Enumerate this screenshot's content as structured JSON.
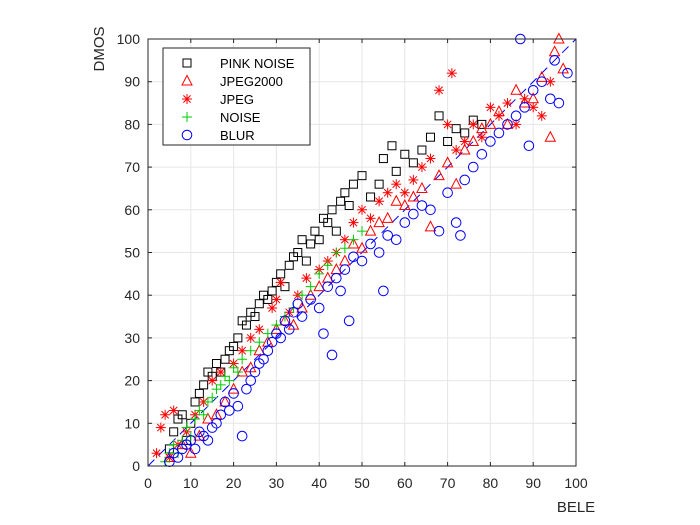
{
  "chart_data": {
    "type": "scatter",
    "xlabel": "BELE",
    "ylabel": "DMOS",
    "xlim": [
      0,
      100
    ],
    "ylim": [
      0,
      100
    ],
    "x_ticks": [
      0,
      10,
      20,
      30,
      40,
      50,
      60,
      70,
      80,
      90,
      100
    ],
    "y_ticks": [
      0,
      10,
      20,
      30,
      40,
      50,
      60,
      70,
      80,
      90,
      100
    ],
    "x_tick_labels": [
      "0",
      "10",
      "20",
      "30",
      "40",
      "50",
      "60",
      "70",
      "80",
      "90",
      "100"
    ],
    "y_tick_labels": [
      "0",
      "10",
      "20",
      "30",
      "40",
      "50",
      "60",
      "70",
      "80",
      "90",
      "100"
    ],
    "grid": true,
    "legend_position": "top-left",
    "reference_line": {
      "style": "dashed",
      "color": "#0000ff",
      "points": [
        [
          0,
          0
        ],
        [
          100,
          100
        ]
      ]
    },
    "series": [
      {
        "name": "PINK NOISE",
        "marker": "square",
        "color": "#000000",
        "points": [
          [
            5,
            4
          ],
          [
            6,
            8
          ],
          [
            7,
            11
          ],
          [
            8,
            12
          ],
          [
            9,
            6
          ],
          [
            10,
            10
          ],
          [
            11,
            15
          ],
          [
            12,
            17
          ],
          [
            13,
            19
          ],
          [
            14,
            22
          ],
          [
            15,
            21
          ],
          [
            16,
            24
          ],
          [
            17,
            22
          ],
          [
            18,
            25
          ],
          [
            19,
            27
          ],
          [
            20,
            28
          ],
          [
            21,
            30
          ],
          [
            22,
            34
          ],
          [
            23,
            33
          ],
          [
            24,
            36
          ],
          [
            25,
            35
          ],
          [
            26,
            38
          ],
          [
            27,
            40
          ],
          [
            28,
            39
          ],
          [
            29,
            41
          ],
          [
            30,
            43
          ],
          [
            31,
            45
          ],
          [
            32,
            42
          ],
          [
            33,
            47
          ],
          [
            34,
            49
          ],
          [
            35,
            50
          ],
          [
            36,
            53
          ],
          [
            37,
            48
          ],
          [
            38,
            52
          ],
          [
            39,
            55
          ],
          [
            40,
            53
          ],
          [
            41,
            58
          ],
          [
            42,
            57
          ],
          [
            43,
            60
          ],
          [
            44,
            55
          ],
          [
            45,
            62
          ],
          [
            46,
            64
          ],
          [
            47,
            61
          ],
          [
            48,
            66
          ],
          [
            50,
            68
          ],
          [
            52,
            63
          ],
          [
            54,
            66
          ],
          [
            55,
            72
          ],
          [
            57,
            75
          ],
          [
            58,
            69
          ],
          [
            60,
            73
          ],
          [
            62,
            71
          ],
          [
            64,
            74
          ],
          [
            66,
            77
          ],
          [
            68,
            82
          ],
          [
            70,
            76
          ],
          [
            72,
            79
          ],
          [
            74,
            78
          ],
          [
            76,
            81
          ],
          [
            78,
            80
          ]
        ]
      },
      {
        "name": "JPEG2000",
        "marker": "triangle",
        "color": "#ff0000",
        "points": [
          [
            5,
            2
          ],
          [
            8,
            5
          ],
          [
            10,
            3
          ],
          [
            12,
            7
          ],
          [
            14,
            11
          ],
          [
            16,
            12
          ],
          [
            18,
            15
          ],
          [
            20,
            18
          ],
          [
            22,
            22
          ],
          [
            24,
            23
          ],
          [
            26,
            27
          ],
          [
            28,
            29
          ],
          [
            30,
            32
          ],
          [
            32,
            34
          ],
          [
            34,
            33
          ],
          [
            36,
            37
          ],
          [
            38,
            40
          ],
          [
            40,
            42
          ],
          [
            42,
            44
          ],
          [
            44,
            46
          ],
          [
            46,
            48
          ],
          [
            48,
            52
          ],
          [
            50,
            51
          ],
          [
            52,
            55
          ],
          [
            54,
            57
          ],
          [
            56,
            58
          ],
          [
            58,
            62
          ],
          [
            60,
            61
          ],
          [
            62,
            63
          ],
          [
            64,
            65
          ],
          [
            66,
            56
          ],
          [
            68,
            68
          ],
          [
            70,
            71
          ],
          [
            72,
            66
          ],
          [
            74,
            74
          ],
          [
            76,
            76
          ],
          [
            78,
            79
          ],
          [
            80,
            80
          ],
          [
            82,
            83
          ],
          [
            84,
            80
          ],
          [
            86,
            88
          ],
          [
            88,
            85
          ],
          [
            90,
            86
          ],
          [
            92,
            91
          ],
          [
            94,
            77
          ],
          [
            95,
            97
          ],
          [
            96,
            100
          ],
          [
            97,
            93
          ]
        ]
      },
      {
        "name": "JPEG",
        "marker": "asterisk",
        "color": "#ff0000",
        "points": [
          [
            2,
            3
          ],
          [
            3,
            9
          ],
          [
            4,
            12
          ],
          [
            5,
            2
          ],
          [
            6,
            13
          ],
          [
            7,
            5
          ],
          [
            9,
            8
          ],
          [
            11,
            12
          ],
          [
            13,
            15
          ],
          [
            15,
            20
          ],
          [
            17,
            22
          ],
          [
            20,
            24
          ],
          [
            22,
            27
          ],
          [
            24,
            30
          ],
          [
            26,
            32
          ],
          [
            29,
            37
          ],
          [
            30,
            39
          ],
          [
            31,
            43
          ],
          [
            33,
            36
          ],
          [
            35,
            40
          ],
          [
            37,
            44
          ],
          [
            40,
            46
          ],
          [
            42,
            48
          ],
          [
            44,
            50
          ],
          [
            46,
            53
          ],
          [
            48,
            57
          ],
          [
            50,
            60
          ],
          [
            52,
            58
          ],
          [
            54,
            62
          ],
          [
            56,
            64
          ],
          [
            58,
            66
          ],
          [
            60,
            64
          ],
          [
            62,
            67
          ],
          [
            64,
            70
          ],
          [
            66,
            72
          ],
          [
            68,
            88
          ],
          [
            70,
            80
          ],
          [
            71,
            92
          ],
          [
            72,
            74
          ],
          [
            74,
            76
          ],
          [
            76,
            80
          ],
          [
            78,
            77
          ],
          [
            80,
            84
          ],
          [
            82,
            82
          ],
          [
            84,
            85
          ],
          [
            86,
            80
          ],
          [
            88,
            86
          ],
          [
            90,
            84
          ],
          [
            92,
            82
          ],
          [
            94,
            90
          ]
        ]
      },
      {
        "name": "NOISE",
        "marker": "plus",
        "color": "#00cc00",
        "points": [
          [
            4,
            1
          ],
          [
            5,
            3
          ],
          [
            6,
            5
          ],
          [
            7,
            3
          ],
          [
            8,
            6
          ],
          [
            9,
            9
          ],
          [
            10,
            7
          ],
          [
            11,
            11
          ],
          [
            12,
            13
          ],
          [
            13,
            12
          ],
          [
            14,
            15
          ],
          [
            15,
            16
          ],
          [
            16,
            18
          ],
          [
            17,
            19
          ],
          [
            18,
            21
          ],
          [
            19,
            20
          ],
          [
            20,
            23
          ],
          [
            21,
            22
          ],
          [
            22,
            25
          ],
          [
            24,
            27
          ],
          [
            26,
            29
          ],
          [
            28,
            31
          ],
          [
            30,
            33
          ],
          [
            32,
            35
          ],
          [
            34,
            37
          ],
          [
            36,
            40
          ],
          [
            38,
            42
          ],
          [
            40,
            45
          ],
          [
            42,
            47
          ],
          [
            44,
            50
          ],
          [
            46,
            51
          ],
          [
            48,
            53
          ],
          [
            50,
            55
          ]
        ]
      },
      {
        "name": "BLUR",
        "marker": "circle",
        "color": "#0000ff",
        "points": [
          [
            5,
            1
          ],
          [
            6,
            3
          ],
          [
            7,
            2
          ],
          [
            8,
            4
          ],
          [
            9,
            5
          ],
          [
            10,
            6
          ],
          [
            11,
            4
          ],
          [
            12,
            8
          ],
          [
            13,
            7
          ],
          [
            14,
            6
          ],
          [
            15,
            9
          ],
          [
            16,
            10
          ],
          [
            17,
            12
          ],
          [
            18,
            15
          ],
          [
            19,
            13
          ],
          [
            20,
            17
          ],
          [
            21,
            14
          ],
          [
            22,
            7
          ],
          [
            23,
            18
          ],
          [
            24,
            20
          ],
          [
            25,
            22
          ],
          [
            26,
            24
          ],
          [
            27,
            25
          ],
          [
            28,
            27
          ],
          [
            29,
            29
          ],
          [
            30,
            31
          ],
          [
            31,
            30
          ],
          [
            32,
            34
          ],
          [
            33,
            32
          ],
          [
            34,
            36
          ],
          [
            35,
            38
          ],
          [
            36,
            35
          ],
          [
            38,
            39
          ],
          [
            40,
            37
          ],
          [
            41,
            31
          ],
          [
            42,
            42
          ],
          [
            43,
            26
          ],
          [
            44,
            44
          ],
          [
            45,
            41
          ],
          [
            46,
            46
          ],
          [
            47,
            34
          ],
          [
            48,
            49
          ],
          [
            50,
            48
          ],
          [
            52,
            52
          ],
          [
            54,
            50
          ],
          [
            55,
            41
          ],
          [
            56,
            54
          ],
          [
            58,
            53
          ],
          [
            60,
            57
          ],
          [
            62,
            59
          ],
          [
            64,
            61
          ],
          [
            66,
            60
          ],
          [
            68,
            55
          ],
          [
            70,
            64
          ],
          [
            72,
            57
          ],
          [
            73,
            54
          ],
          [
            74,
            67
          ],
          [
            76,
            70
          ],
          [
            78,
            73
          ],
          [
            80,
            76
          ],
          [
            82,
            78
          ],
          [
            84,
            80
          ],
          [
            86,
            82
          ],
          [
            87,
            100
          ],
          [
            88,
            84
          ],
          [
            89,
            75
          ],
          [
            90,
            88
          ],
          [
            92,
            90
          ],
          [
            94,
            86
          ],
          [
            95,
            95
          ],
          [
            96,
            85
          ],
          [
            98,
            92
          ]
        ]
      }
    ]
  }
}
